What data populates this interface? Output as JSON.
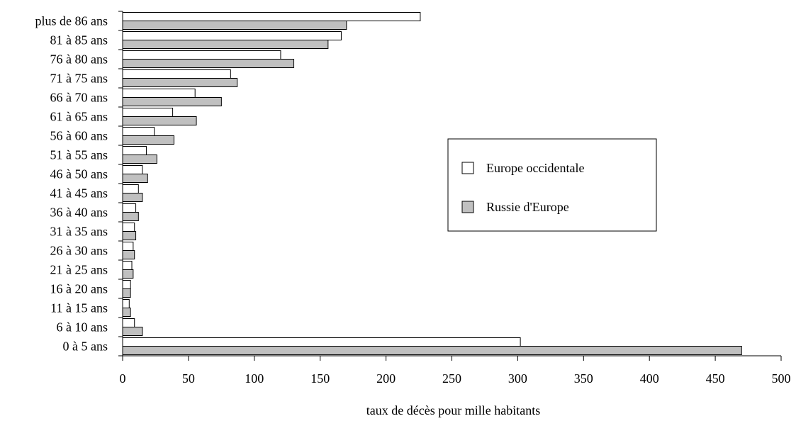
{
  "chart_data": {
    "type": "bar",
    "orientation": "horizontal",
    "categories": [
      "plus de 86 ans",
      "81 à 85 ans",
      "76 à 80 ans",
      "71 à 75 ans",
      "66 à 70 ans",
      "61 à 65 ans",
      "56 à 60 ans",
      "51 à 55 ans",
      "46 à 50 ans",
      "41 à 45 ans",
      "36 à 40 ans",
      "31 à 35 ans",
      "26 à 30 ans",
      "21 à 25 ans",
      "16 à 20 ans",
      "11 à 15 ans",
      "6 à 10 ans",
      "0 à 5 ans"
    ],
    "series": [
      {
        "name": "Europe occidentale",
        "color": "#ffffff",
        "values": [
          226,
          166,
          120,
          82,
          55,
          38,
          24,
          18,
          15,
          12,
          10,
          9,
          8,
          7,
          6,
          5,
          9,
          302
        ]
      },
      {
        "name": "Russie d'Europe",
        "color": "#c0c0c0",
        "values": [
          170,
          156,
          130,
          87,
          75,
          56,
          39,
          26,
          19,
          15,
          12,
          10,
          9,
          8,
          6,
          6,
          15,
          470
        ]
      }
    ],
    "xlabel": "taux de décès pour mille habitants",
    "ylabel": "",
    "title": "",
    "xlim": [
      0,
      500
    ],
    "xticks": [
      0,
      50,
      100,
      150,
      200,
      250,
      300,
      350,
      400,
      450,
      500
    ],
    "grid": false,
    "legend_position": "right-center"
  }
}
